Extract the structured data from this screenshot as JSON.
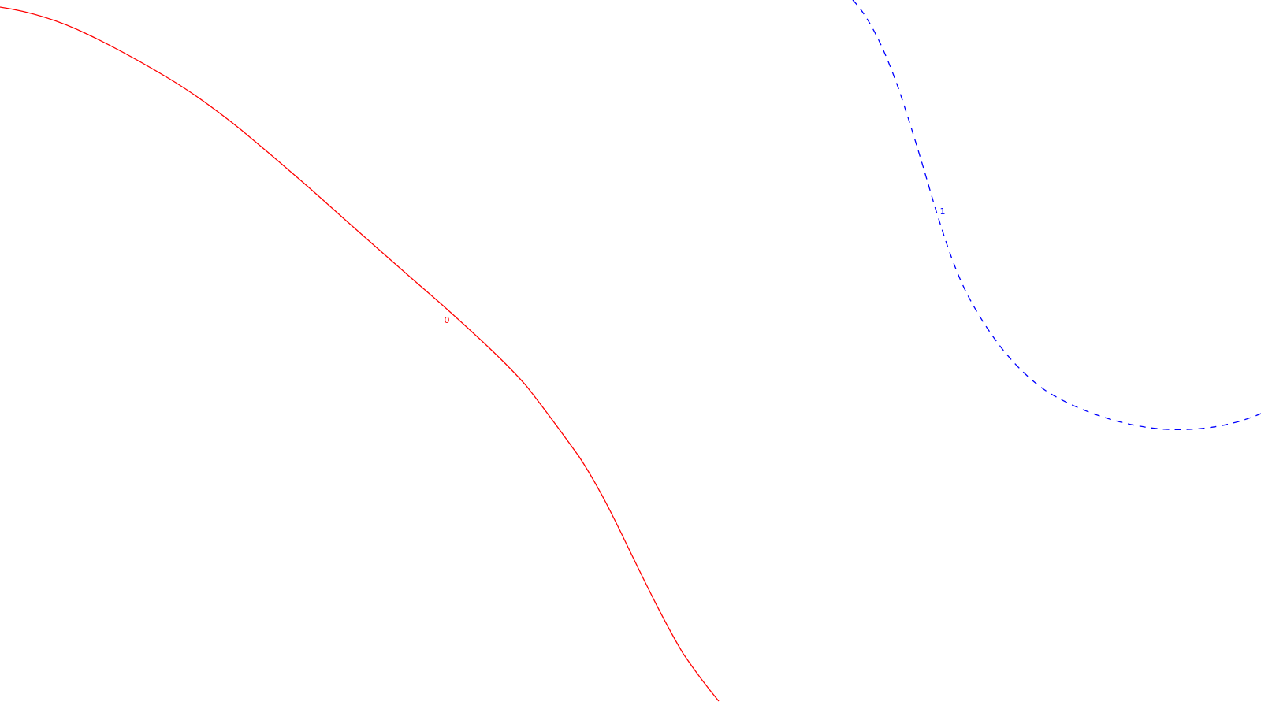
{
  "map": {
    "background_color": "#ffffff",
    "contours": [
      {
        "label": "0",
        "color": "#ff0000",
        "line_style": "solid"
      },
      {
        "label": "1",
        "color": "#0000ff",
        "line_style": "dashed"
      }
    ]
  }
}
